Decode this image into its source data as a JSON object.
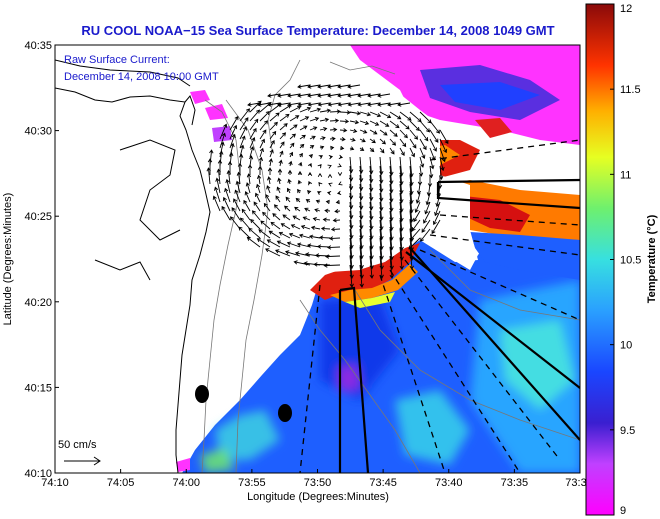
{
  "chart_data": {
    "type": "heatmap",
    "title": "RU COOL  NOAA−15  Sea Surface Temperature:  December 14, 2008 1049 GMT",
    "overlay_lines": [
      "Raw Surface Current:",
      "December 14, 2008 10:00 GMT"
    ],
    "xlabel": "Longitude (Degrees:Minutes)",
    "ylabel": "Latitude (Degrees:Minutes)",
    "x_ticks": [
      "74:10",
      "74:05",
      "74:00",
      "73:55",
      "73:50",
      "73:45",
      "73:40",
      "73:35",
      "73:3"
    ],
    "y_ticks": [
      "40:35",
      "40:30",
      "40:25",
      "40:20",
      "40:15",
      "40:10"
    ],
    "xlim_deg": [
      -74.1667,
      -73.5167
    ],
    "ylim_deg": [
      40.1667,
      40.5833
    ],
    "scale_label": "50 cm/s",
    "colorbar": {
      "label": "Temperature (°C)",
      "ticks": [
        "12",
        "11.5",
        "11",
        "10.5",
        "10",
        "9.5",
        "9"
      ],
      "range": [
        9,
        12
      ]
    },
    "colors": {
      "land": "#ffffff",
      "title": "#1a1acc"
    }
  }
}
